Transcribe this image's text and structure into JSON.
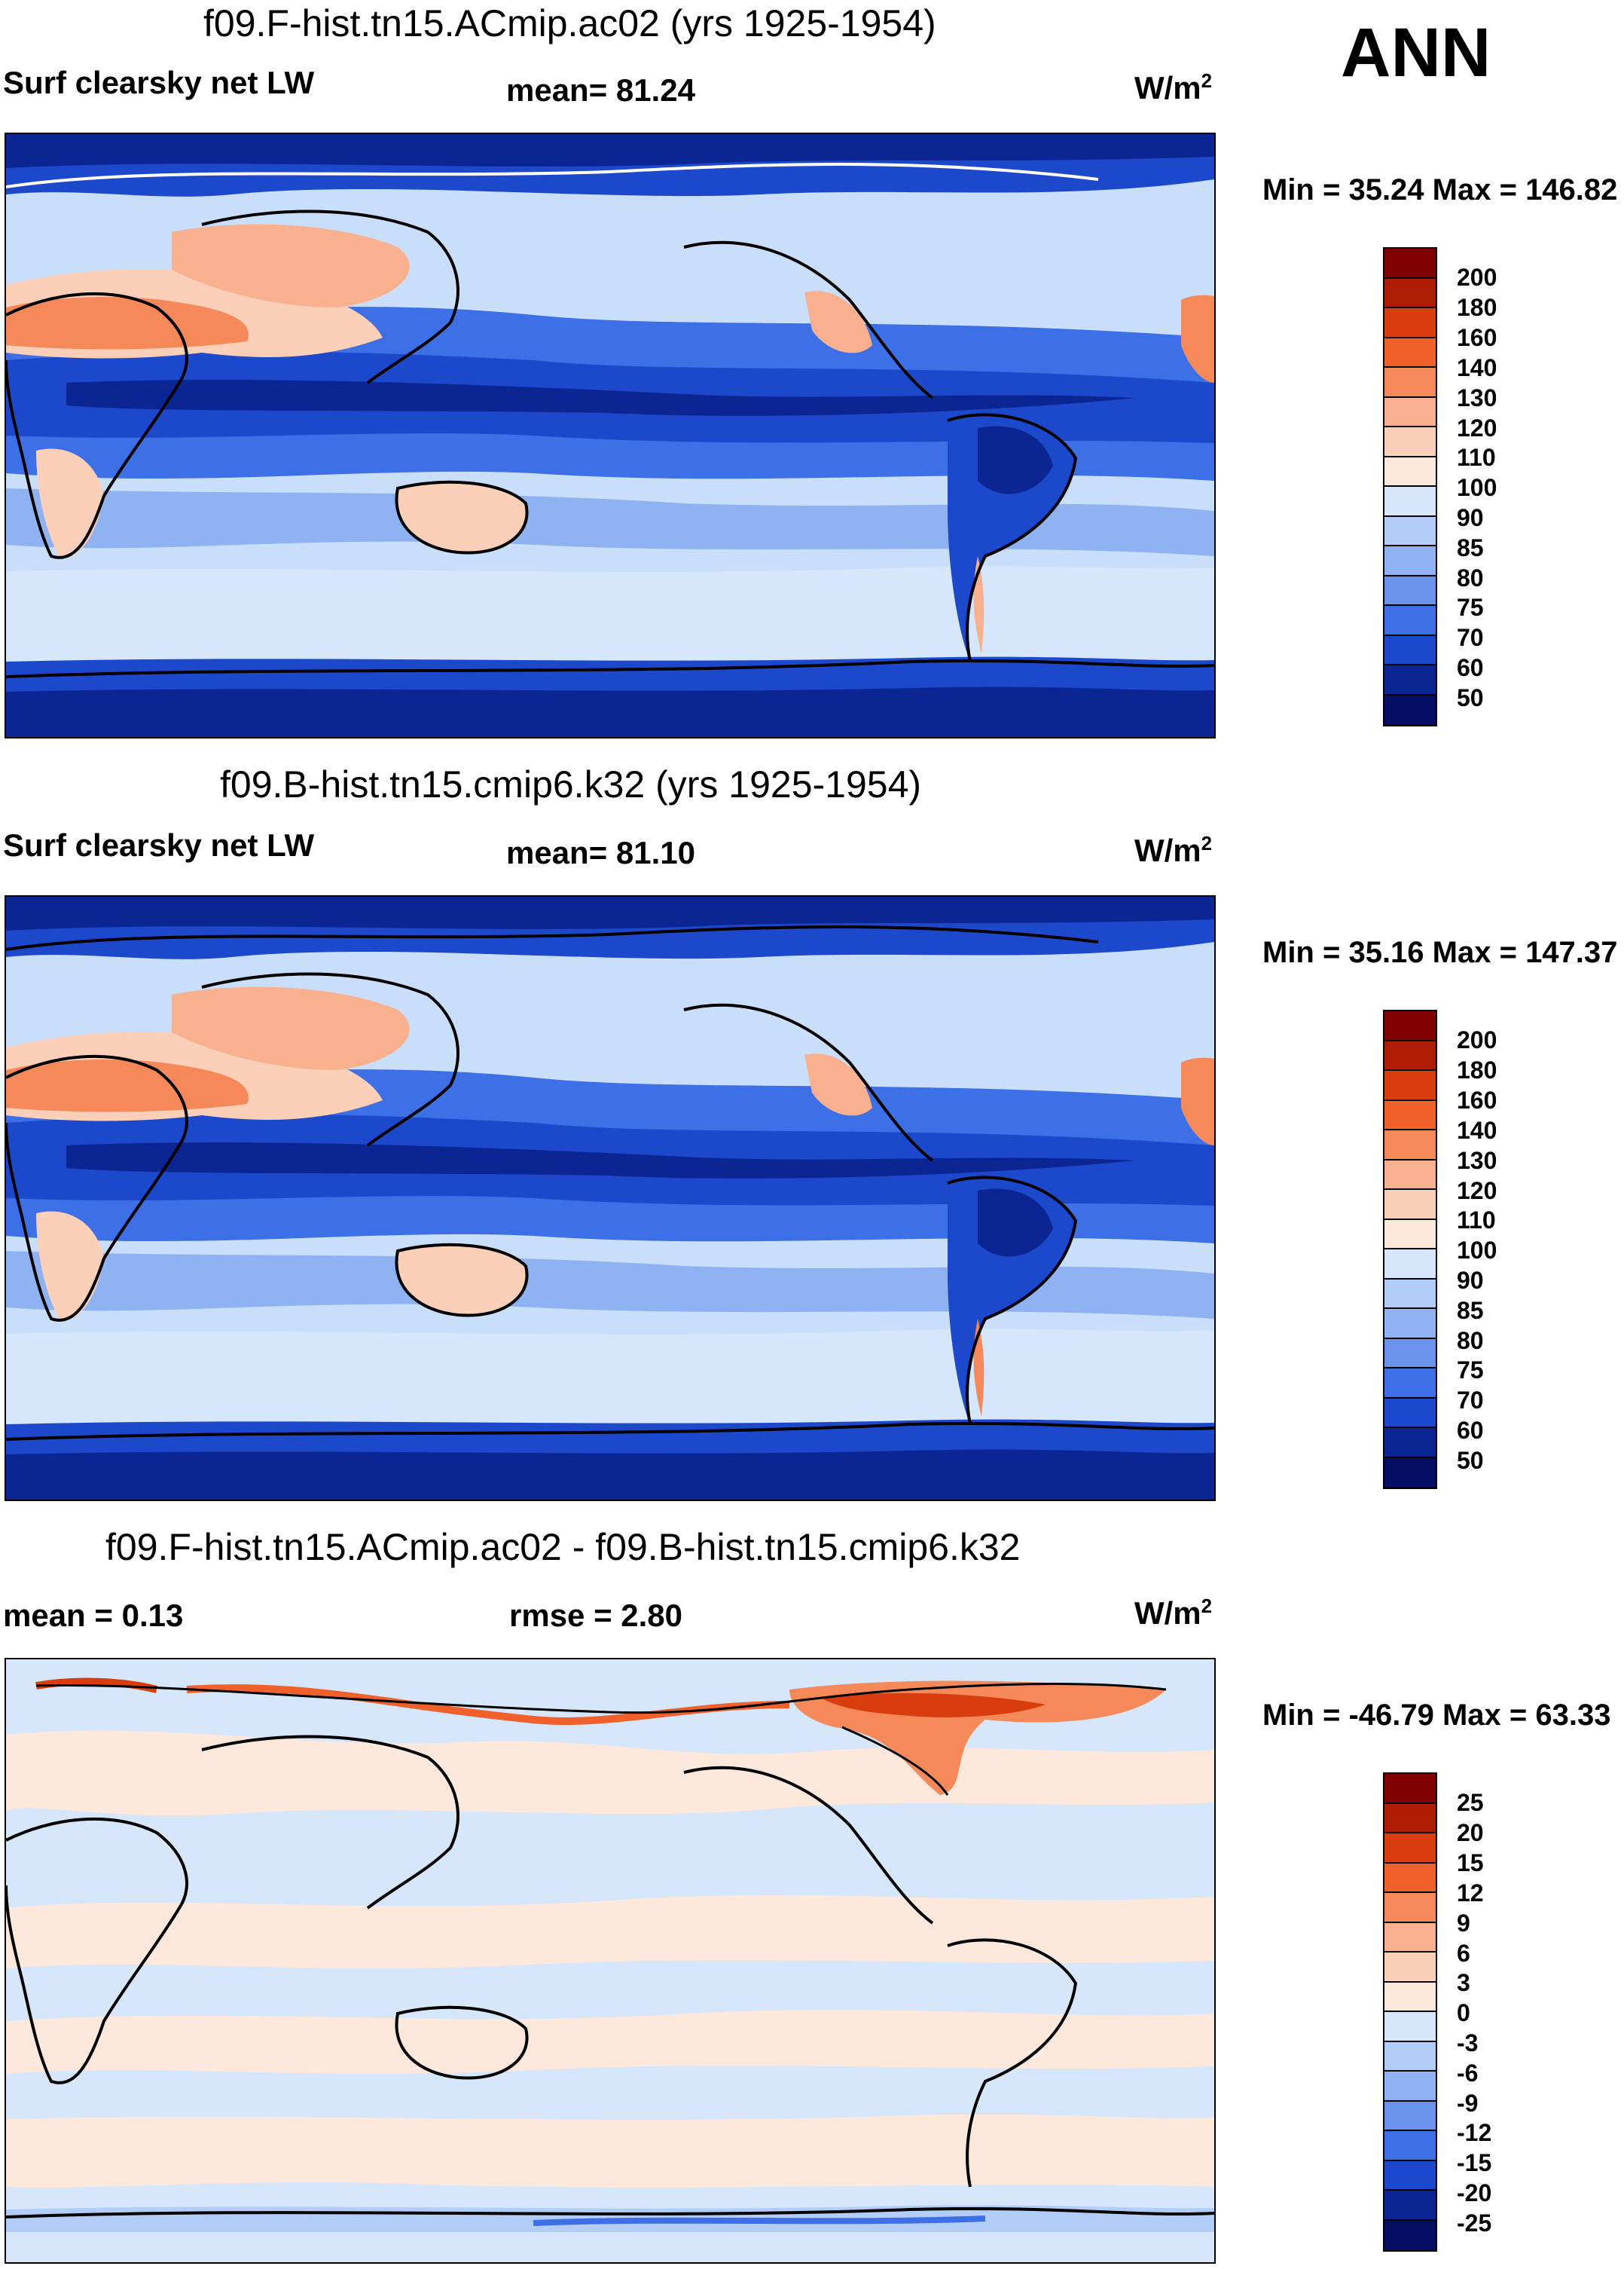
{
  "season": "ANN",
  "panels": [
    {
      "title": "f09.F-hist.tn15.ACmip.ac02 (yrs 1925-1954)",
      "left_label": "Surf clearsky net LW",
      "stat_label": "mean=  81.24",
      "units": "W/m",
      "units_sup": "2",
      "minmax": "Min =  35.24 Max = 146.82",
      "levels": [
        "200",
        "180",
        "160",
        "140",
        "130",
        "120",
        "110",
        "100",
        "90",
        "85",
        "80",
        "75",
        "70",
        "60",
        "50"
      ]
    },
    {
      "title": "f09.B-hist.tn15.cmip6.k32 (yrs 1925-1954)",
      "left_label": "Surf clearsky net LW",
      "stat_label": "mean=  81.10",
      "units": "W/m",
      "units_sup": "2",
      "minmax": "Min =  35.16 Max = 147.37",
      "levels": [
        "200",
        "180",
        "160",
        "140",
        "130",
        "120",
        "110",
        "100",
        "90",
        "85",
        "80",
        "75",
        "70",
        "60",
        "50"
      ]
    },
    {
      "title": "f09.F-hist.tn15.ACmip.ac02 - f09.B-hist.tn15.cmip6.k32",
      "left_label": "mean =   0.13",
      "stat_label": "rmse =   2.80",
      "units": "W/m",
      "units_sup": "2",
      "minmax": "Min = -46.79 Max =  63.33",
      "levels": [
        "25",
        "20",
        "15",
        "12",
        "9",
        "6",
        "3",
        "0",
        "-3",
        "-6",
        "-9",
        "-12",
        "-15",
        "-20",
        "-25"
      ]
    }
  ],
  "colors": {
    "abs_scale": [
      "#7f0000",
      "#b01d05",
      "#d93d0e",
      "#f0602a",
      "#f5895a",
      "#f9b08f",
      "#fccfb8",
      "#fde8db",
      "#d6e6fb",
      "#b2cdf7",
      "#8fb2f2",
      "#6a93ec",
      "#3d6fe6",
      "#1c48cc",
      "#0b2593",
      "#040e64"
    ],
    "diff_scale": [
      "#7f0000",
      "#b01d05",
      "#d93d0e",
      "#f0602a",
      "#f5895a",
      "#f9b08f",
      "#fccfb8",
      "#fde8db",
      "#d6e6fb",
      "#b2cdf7",
      "#8fb2f2",
      "#6a93ec",
      "#3d6fe6",
      "#1c48cc",
      "#0b2593",
      "#040e64"
    ]
  }
}
